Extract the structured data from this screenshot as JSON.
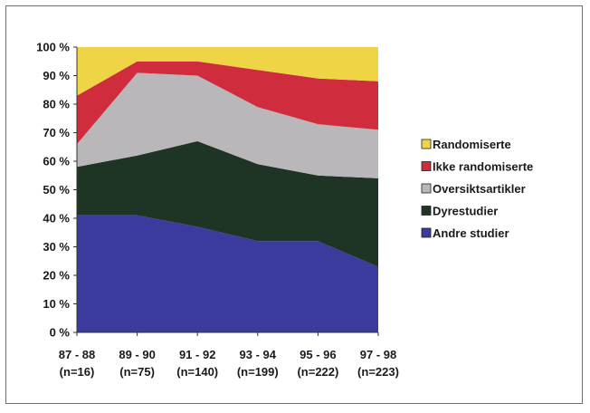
{
  "chart_data": {
    "type": "area",
    "stacked": true,
    "percent": true,
    "categories": [
      "87 - 88",
      "89 - 90",
      "91 - 92",
      "93 - 94",
      "95 - 96",
      "97 - 98"
    ],
    "category_sublabels": [
      "(n=16)",
      "(n=75)",
      "(n=140)",
      "(n=199)",
      "(n=222)",
      "(n=223)"
    ],
    "ylim": [
      0,
      100
    ],
    "yticks": [
      "0 %",
      "10 %",
      "20 %",
      "30 %",
      "40 %",
      "50 %",
      "60 %",
      "70 %",
      "80 %",
      "90 %",
      "100 %"
    ],
    "grid": false,
    "legend_position": "right",
    "series": [
      {
        "name": "Andre studier",
        "color": "#3b3b9e",
        "values": [
          41,
          41,
          37,
          32,
          32,
          23
        ]
      },
      {
        "name": "Dyrestudier",
        "color": "#1e3526",
        "values": [
          17,
          21,
          30,
          27,
          23,
          31
        ]
      },
      {
        "name": "Oversiktsartikler",
        "color": "#b9b7b9",
        "values": [
          8,
          29,
          23,
          20,
          18,
          17
        ]
      },
      {
        "name": "Ikke randomiserte",
        "color": "#cf2c3d",
        "values": [
          17,
          4,
          5,
          13,
          16,
          17
        ]
      },
      {
        "name": "Randomiserte",
        "color": "#efd545",
        "values": [
          17,
          5,
          5,
          8,
          11,
          12
        ]
      }
    ]
  }
}
